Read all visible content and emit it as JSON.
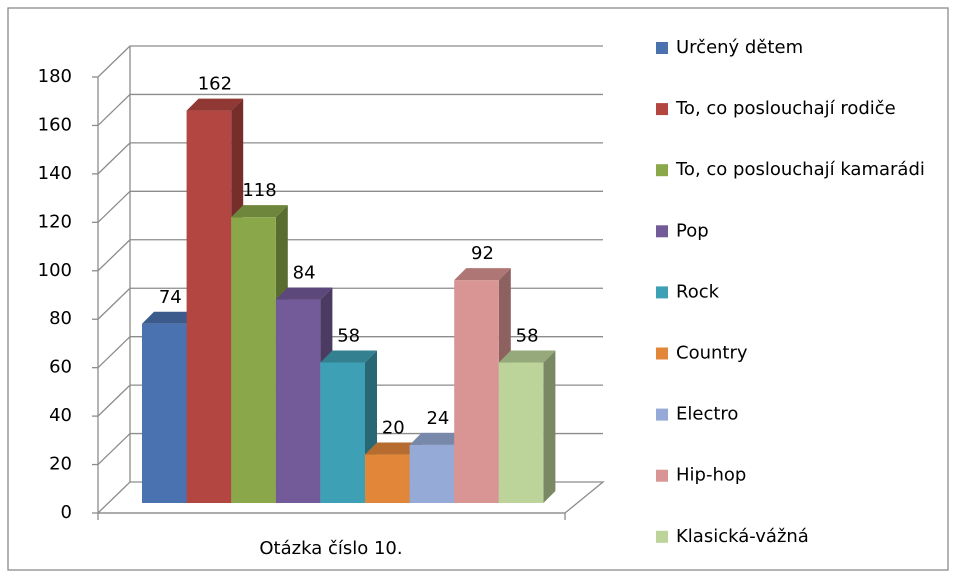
{
  "chart_data": {
    "type": "bar3d",
    "categories": [
      "Otázka číslo 10."
    ],
    "series": [
      {
        "name": "Určený dětem",
        "color": "#4a72b0",
        "values": [
          74
        ]
      },
      {
        "name": "To, co poslouchají rodiče",
        "color": "#b44641",
        "values": [
          162
        ]
      },
      {
        "name": "To, co poslouchají kamarádi",
        "color": "#8aa84a",
        "values": [
          118
        ]
      },
      {
        "name": "Pop",
        "color": "#735a98",
        "values": [
          84
        ]
      },
      {
        "name": "Rock",
        "color": "#3ea0b4",
        "values": [
          58
        ]
      },
      {
        "name": "Country",
        "color": "#e2873a",
        "values": [
          20
        ]
      },
      {
        "name": "Electro",
        "color": "#95aad6",
        "values": [
          24
        ]
      },
      {
        "name": "Hip-hop",
        "color": "#d99594",
        "values": [
          92
        ]
      },
      {
        "name": "Klasická-vážná",
        "color": "#bcd39a",
        "values": [
          58
        ]
      }
    ],
    "ylim": [
      0,
      180
    ],
    "yticks": [
      0,
      20,
      40,
      60,
      80,
      100,
      120,
      140,
      160,
      180
    ],
    "grid": true,
    "legend": "right"
  }
}
